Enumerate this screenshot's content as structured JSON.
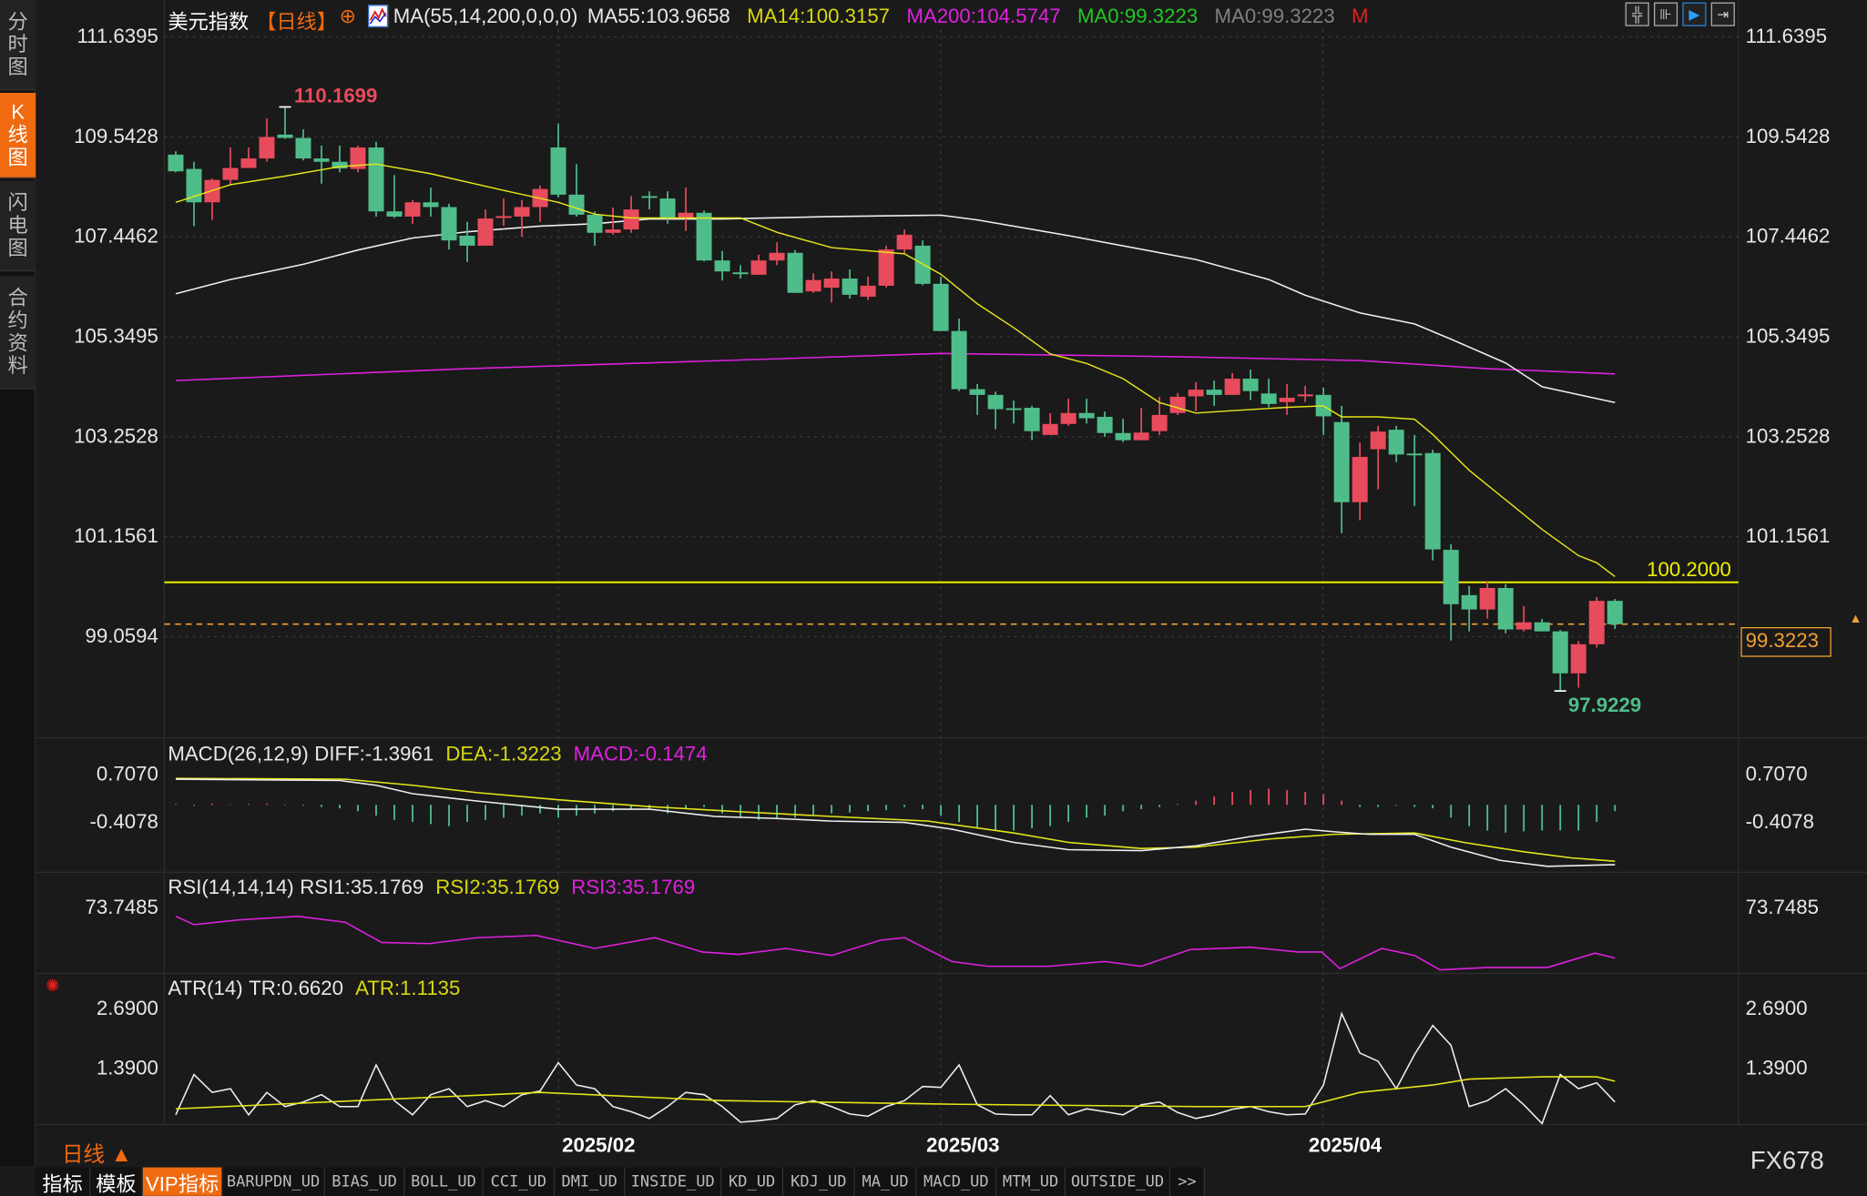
{
  "sidebar": {
    "tabs": [
      {
        "label": "分时图",
        "active": false
      },
      {
        "label": "K线图",
        "active": true
      },
      {
        "label": "闪电图",
        "active": false
      },
      {
        "label": "合约资料",
        "active": false
      }
    ]
  },
  "header": {
    "symbol": "美元指数",
    "period": "【日线】",
    "add_icon": "⊕",
    "ma_params": "MA(55,14,200,0,0,0)",
    "ma55": "MA55:103.9658",
    "ma14": "MA14:100.3157",
    "ma200": "MA200:104.5747",
    "ma0a": "MA0:99.3223",
    "ma0b": "MA0:99.3223",
    "m": "M"
  },
  "colors": {
    "up": "#e84b5c",
    "down": "#4fbd8a",
    "ma14": "#e6e619",
    "ma55": "#eeeeee",
    "ma200": "#e020e0",
    "accent": "#f06a10",
    "line_alert": "#f0f000",
    "last_price": "#f0a030"
  },
  "toolbar_icons": [
    "crosshair-icon",
    "range-icon",
    "play-icon",
    "exit-icon"
  ],
  "price_axis": {
    "labels": [
      "111.6395",
      "109.5428",
      "107.4462",
      "105.3495",
      "103.2528",
      "101.1561",
      "99.0594"
    ],
    "max": 111.6395,
    "min": 99.0594
  },
  "annotations": {
    "high": "110.1699",
    "low": "97.9229",
    "alert_line": "100.2000",
    "alert_value": 100.2,
    "last_price": "99.3223",
    "last_value": 99.3223
  },
  "candles": [
    [
      109.17,
      109.24,
      108.8,
      108.82
    ],
    [
      108.87,
      109.02,
      107.67,
      108.17
    ],
    [
      108.17,
      108.67,
      107.8,
      108.64
    ],
    [
      108.64,
      109.32,
      108.52,
      108.89
    ],
    [
      108.89,
      109.32,
      108.89,
      109.09
    ],
    [
      109.09,
      109.93,
      109.02,
      109.54
    ],
    [
      109.59,
      110.17,
      109.5,
      109.52
    ],
    [
      109.52,
      109.7,
      109.05,
      109.09
    ],
    [
      109.09,
      109.36,
      108.56,
      109.02
    ],
    [
      109.02,
      109.36,
      108.8,
      108.88
    ],
    [
      108.87,
      109.36,
      108.8,
      109.32
    ],
    [
      109.32,
      109.44,
      107.87,
      107.98
    ],
    [
      107.98,
      108.74,
      107.84,
      107.87
    ],
    [
      107.87,
      108.22,
      107.72,
      108.17
    ],
    [
      108.17,
      108.48,
      107.87,
      108.07
    ],
    [
      108.07,
      108.14,
      107.18,
      107.37
    ],
    [
      107.47,
      107.76,
      106.92,
      107.26
    ],
    [
      107.26,
      108.02,
      107.26,
      107.83
    ],
    [
      107.85,
      108.25,
      107.68,
      107.88
    ],
    [
      107.87,
      108.22,
      107.45,
      108.07
    ],
    [
      108.07,
      108.52,
      107.76,
      108.45
    ],
    [
      109.32,
      109.82,
      108.27,
      108.33
    ],
    [
      108.33,
      108.97,
      107.87,
      107.91
    ],
    [
      107.91,
      107.98,
      107.26,
      107.53
    ],
    [
      107.53,
      108.06,
      107.49,
      107.6
    ],
    [
      107.6,
      108.3,
      107.53,
      108.02
    ],
    [
      108.3,
      108.4,
      108.02,
      108.27
    ],
    [
      108.25,
      108.4,
      107.72,
      107.83
    ],
    [
      107.83,
      108.48,
      107.57,
      107.95
    ],
    [
      107.95,
      108.0,
      106.93,
      106.95
    ],
    [
      106.95,
      107.15,
      106.53,
      106.72
    ],
    [
      106.7,
      106.85,
      106.57,
      106.67
    ],
    [
      106.65,
      107.07,
      106.65,
      106.95
    ],
    [
      106.95,
      107.33,
      106.85,
      107.11
    ],
    [
      107.11,
      107.17,
      106.27,
      106.27
    ],
    [
      106.3,
      106.68,
      106.27,
      106.54
    ],
    [
      106.38,
      106.72,
      106.07,
      106.57
    ],
    [
      106.57,
      106.76,
      106.15,
      106.23
    ],
    [
      106.19,
      106.61,
      106.12,
      106.42
    ],
    [
      106.42,
      107.26,
      106.38,
      107.18
    ],
    [
      107.18,
      107.6,
      107.1,
      107.49
    ],
    [
      107.26,
      107.37,
      106.43,
      106.46
    ],
    [
      106.46,
      106.61,
      105.47,
      105.47
    ],
    [
      105.47,
      105.73,
      104.21,
      104.25
    ],
    [
      104.25,
      104.36,
      103.71,
      104.13
    ],
    [
      104.13,
      104.2,
      103.41,
      103.83
    ],
    [
      103.85,
      104.01,
      103.53,
      103.82
    ],
    [
      103.86,
      103.9,
      103.18,
      103.37
    ],
    [
      103.29,
      103.75,
      103.29,
      103.52
    ],
    [
      103.52,
      104.05,
      103.48,
      103.75
    ],
    [
      103.75,
      104.05,
      103.53,
      103.64
    ],
    [
      103.67,
      103.78,
      103.25,
      103.33
    ],
    [
      103.33,
      103.63,
      103.14,
      103.18
    ],
    [
      103.18,
      103.86,
      103.18,
      103.34
    ],
    [
      103.37,
      104.09,
      103.29,
      103.71
    ],
    [
      103.75,
      104.17,
      103.71,
      104.09
    ],
    [
      104.1,
      104.4,
      103.79,
      104.24
    ],
    [
      104.24,
      104.43,
      103.9,
      104.13
    ],
    [
      104.13,
      104.59,
      104.13,
      104.47
    ],
    [
      104.47,
      104.66,
      104.02,
      104.21
    ],
    [
      104.16,
      104.47,
      103.87,
      103.94
    ],
    [
      103.98,
      104.36,
      103.71,
      104.07
    ],
    [
      104.1,
      104.32,
      103.98,
      104.14
    ],
    [
      104.13,
      104.28,
      103.29,
      103.68
    ],
    [
      103.56,
      103.9,
      101.23,
      101.88
    ],
    [
      101.88,
      103.13,
      101.5,
      102.83
    ],
    [
      102.99,
      103.48,
      102.15,
      103.36
    ],
    [
      103.4,
      103.48,
      102.72,
      102.88
    ],
    [
      102.9,
      103.29,
      101.8,
      102.87
    ],
    [
      102.91,
      102.98,
      100.66,
      100.89
    ],
    [
      100.88,
      101.0,
      98.98,
      99.74
    ],
    [
      99.93,
      100.12,
      99.17,
      99.63
    ],
    [
      99.63,
      100.23,
      99.44,
      100.08
    ],
    [
      100.08,
      100.16,
      99.13,
      99.21
    ],
    [
      99.21,
      99.7,
      99.17,
      99.36
    ],
    [
      99.36,
      99.43,
      99.17,
      99.17
    ],
    [
      99.17,
      99.2,
      97.92,
      98.29
    ],
    [
      98.29,
      98.97,
      97.99,
      98.9
    ],
    [
      98.9,
      99.89,
      98.83,
      99.81
    ],
    [
      99.81,
      99.85,
      99.22,
      99.32
    ]
  ],
  "ma14": [
    [
      0,
      108.17
    ],
    [
      3,
      108.54
    ],
    [
      6,
      108.72
    ],
    [
      9,
      108.92
    ],
    [
      11,
      108.97
    ],
    [
      14,
      108.77
    ],
    [
      18,
      108.42
    ],
    [
      21,
      108.17
    ],
    [
      23,
      107.92
    ],
    [
      25,
      107.84
    ],
    [
      29,
      107.84
    ],
    [
      31,
      107.84
    ],
    [
      33,
      107.54
    ],
    [
      36,
      107.22
    ],
    [
      40,
      107.09
    ],
    [
      42,
      106.66
    ],
    [
      44,
      106.04
    ],
    [
      46,
      105.54
    ],
    [
      48,
      104.99
    ],
    [
      50,
      104.79
    ],
    [
      52,
      104.47
    ],
    [
      54,
      103.97
    ],
    [
      56,
      103.75
    ],
    [
      58,
      103.8
    ],
    [
      61,
      103.87
    ],
    [
      63,
      103.9
    ],
    [
      64,
      103.67
    ],
    [
      66,
      103.67
    ],
    [
      68,
      103.62
    ],
    [
      69,
      103.3
    ],
    [
      71,
      102.55
    ],
    [
      73,
      101.93
    ],
    [
      75,
      101.31
    ],
    [
      77,
      100.76
    ],
    [
      78,
      100.61
    ],
    [
      79,
      100.32
    ]
  ],
  "ma55": [
    [
      0,
      106.25
    ],
    [
      3,
      106.55
    ],
    [
      7,
      106.87
    ],
    [
      10,
      107.17
    ],
    [
      13,
      107.42
    ],
    [
      16,
      107.55
    ],
    [
      20,
      107.67
    ],
    [
      23,
      107.72
    ],
    [
      26,
      107.82
    ],
    [
      30,
      107.82
    ],
    [
      36,
      107.87
    ],
    [
      42,
      107.9
    ],
    [
      44,
      107.8
    ],
    [
      49,
      107.47
    ],
    [
      56,
      106.97
    ],
    [
      60,
      106.55
    ],
    [
      62,
      106.22
    ],
    [
      65,
      105.85
    ],
    [
      68,
      105.62
    ],
    [
      70,
      105.3
    ],
    [
      73,
      104.8
    ],
    [
      75,
      104.3
    ],
    [
      79,
      103.97
    ]
  ],
  "ma200": [
    [
      0,
      104.43
    ],
    [
      16,
      104.68
    ],
    [
      30,
      104.85
    ],
    [
      42,
      105.0
    ],
    [
      55,
      104.93
    ],
    [
      65,
      104.85
    ],
    [
      72,
      104.68
    ],
    [
      79,
      104.57
    ]
  ],
  "macd": {
    "title": "MACD(26,12,9)",
    "diff_label": "DIFF:-1.3961",
    "dea_label": "DEA:-1.3223",
    "macd_label": "MACD:-0.1474",
    "axis": [
      "0.7070",
      "-0.4078"
    ],
    "top": 0.707,
    "bottom": -0.4078,
    "diff": [
      [
        0,
        0.6
      ],
      [
        9,
        0.57
      ],
      [
        11,
        0.46
      ],
      [
        13,
        0.26
      ],
      [
        16.5,
        0.09
      ],
      [
        21,
        -0.1
      ],
      [
        26,
        -0.1
      ],
      [
        29.6,
        -0.27
      ],
      [
        33,
        -0.32
      ],
      [
        36,
        -0.38
      ],
      [
        40,
        -0.41
      ],
      [
        42.6,
        -0.57
      ],
      [
        46,
        -0.88
      ],
      [
        49,
        -1.05
      ],
      [
        53,
        -1.07
      ],
      [
        56,
        -0.96
      ],
      [
        59,
        -0.74
      ],
      [
        62,
        -0.57
      ],
      [
        63.6,
        -0.63
      ],
      [
        65.5,
        -0.69
      ],
      [
        68,
        -0.69
      ],
      [
        70,
        -0.99
      ],
      [
        72.7,
        -1.3
      ],
      [
        75.3,
        -1.44
      ],
      [
        79,
        -1.4
      ]
    ],
    "dea": [
      [
        0,
        0.62
      ],
      [
        9.3,
        0.6
      ],
      [
        13,
        0.46
      ],
      [
        16.5,
        0.29
      ],
      [
        21,
        0.12
      ],
      [
        26,
        -0.04
      ],
      [
        30.9,
        -0.16
      ],
      [
        36,
        -0.27
      ],
      [
        41.3,
        -0.38
      ],
      [
        46,
        -0.66
      ],
      [
        49,
        -0.88
      ],
      [
        53,
        -1.02
      ],
      [
        56,
        -0.99
      ],
      [
        60,
        -0.8
      ],
      [
        63.6,
        -0.69
      ],
      [
        68,
        -0.66
      ],
      [
        70.7,
        -0.88
      ],
      [
        74,
        -1.1
      ],
      [
        76.6,
        -1.24
      ],
      [
        79,
        -1.32
      ]
    ],
    "hist": [
      0.02,
      -0.02,
      0.03,
      0.01,
      0.02,
      0.03,
      -0.01,
      -0.02,
      -0.05,
      -0.08,
      -0.15,
      -0.25,
      -0.35,
      -0.4,
      -0.45,
      -0.5,
      -0.4,
      -0.35,
      -0.3,
      -0.25,
      -0.2,
      -0.3,
      -0.25,
      -0.2,
      -0.15,
      -0.1,
      -0.12,
      -0.2,
      -0.1,
      -0.05,
      -0.2,
      -0.3,
      -0.35,
      -0.3,
      -0.3,
      -0.25,
      -0.2,
      -0.18,
      -0.15,
      -0.12,
      -0.05,
      -0.1,
      -0.25,
      -0.4,
      -0.55,
      -0.6,
      -0.6,
      -0.55,
      -0.5,
      -0.4,
      -0.3,
      -0.25,
      -0.15,
      -0.1,
      -0.05,
      0.02,
      0.1,
      0.2,
      0.3,
      0.35,
      0.38,
      0.35,
      0.3,
      0.25,
      0.1,
      -0.05,
      -0.05,
      -0.02,
      -0.05,
      -0.08,
      -0.3,
      -0.5,
      -0.6,
      -0.65,
      -0.62,
      -0.6,
      -0.6,
      -0.6,
      -0.4,
      -0.1474
    ]
  },
  "rsi": {
    "title": "RSI(14,14,14)",
    "rsi1_label": "RSI1:35.1769",
    "rsi2_label": "RSI2:35.1769",
    "rsi3_label": "RSI3:35.1769",
    "axis": [
      "73.7485"
    ],
    "ref": 73.7485,
    "values": [
      [
        0,
        67.3
      ],
      [
        1,
        60.9
      ],
      [
        3.5,
        64.6
      ],
      [
        6.7,
        67.3
      ],
      [
        9.3,
        62.7
      ],
      [
        11.3,
        47.1
      ],
      [
        13.9,
        46.2
      ],
      [
        16.5,
        50.8
      ],
      [
        19.8,
        52.6
      ],
      [
        23,
        42.6
      ],
      [
        26.3,
        50.8
      ],
      [
        28.9,
        39.8
      ],
      [
        30.9,
        38.0
      ],
      [
        33.5,
        42.6
      ],
      [
        36,
        37.1
      ],
      [
        38.7,
        49.0
      ],
      [
        40,
        50.8
      ],
      [
        42.6,
        32.5
      ],
      [
        44.6,
        28.8
      ],
      [
        47.9,
        28.8
      ],
      [
        51,
        32.5
      ],
      [
        53,
        28.8
      ],
      [
        55.7,
        41.7
      ],
      [
        59,
        43.5
      ],
      [
        61.6,
        39.8
      ],
      [
        62.9,
        39.8
      ],
      [
        63.9,
        27.0
      ],
      [
        66.2,
        42.6
      ],
      [
        68,
        37.1
      ],
      [
        69.4,
        26.0
      ],
      [
        72,
        27.9
      ],
      [
        75.3,
        27.9
      ],
      [
        77.9,
        38.9
      ],
      [
        79,
        35.18
      ]
    ]
  },
  "atr": {
    "title": "ATR(14)",
    "tr_label": "TR:0.6620",
    "atr_label": "ATR:1.1135",
    "axis": [
      "2.6900",
      "1.3900"
    ],
    "top": 2.69,
    "mid": 1.39,
    "tr": [
      0.38,
      1.26,
      0.87,
      0.95,
      0.38,
      0.87,
      0.56,
      0.66,
      0.82,
      0.56,
      0.56,
      1.47,
      0.69,
      0.38,
      0.82,
      0.95,
      0.56,
      0.69,
      0.56,
      0.82,
      0.9,
      1.52,
      1.03,
      0.95,
      0.56,
      0.45,
      0.3,
      0.56,
      0.87,
      0.82,
      0.56,
      0.22,
      0.25,
      0.3,
      0.6,
      0.69,
      0.56,
      0.4,
      0.35,
      0.56,
      0.69,
      1.0,
      0.98,
      1.47,
      0.6,
      0.4,
      0.38,
      0.38,
      0.8,
      0.38,
      0.51,
      0.45,
      0.38,
      0.6,
      0.66,
      0.43,
      0.3,
      0.38,
      0.5,
      0.56,
      0.45,
      0.38,
      0.4,
      1.03,
      2.59,
      1.73,
      1.55,
      0.95,
      1.7,
      2.33,
      1.9,
      0.56,
      0.69,
      0.95,
      0.6,
      0.19,
      1.26,
      0.95,
      1.08,
      0.662
    ],
    "atr": [
      [
        0,
        0.51
      ],
      [
        10,
        0.69
      ],
      [
        20,
        0.87
      ],
      [
        30,
        0.69
      ],
      [
        43,
        0.61
      ],
      [
        56,
        0.56
      ],
      [
        62,
        0.56
      ],
      [
        65,
        0.87
      ],
      [
        69,
        1.03
      ],
      [
        71,
        1.16
      ],
      [
        75,
        1.21
      ],
      [
        78,
        1.21
      ],
      [
        79,
        1.1135
      ]
    ]
  },
  "time_axis": {
    "labels": [
      "2025/02",
      "2025/03",
      "2025/04"
    ],
    "period": "日线 ▲"
  },
  "brand": "FX678",
  "tabbar": [
    "指标",
    "模板",
    "VIP指标",
    "BARUPDN_UD",
    "BIAS_UD",
    "BOLL_UD",
    "CCI_UD",
    "DMI_UD",
    "INSIDE_UD",
    "KD_UD",
    "KDJ_UD",
    "MA_UD",
    "MACD_UD",
    "MTM_UD",
    "OUTSIDE_UD",
    ">>"
  ]
}
